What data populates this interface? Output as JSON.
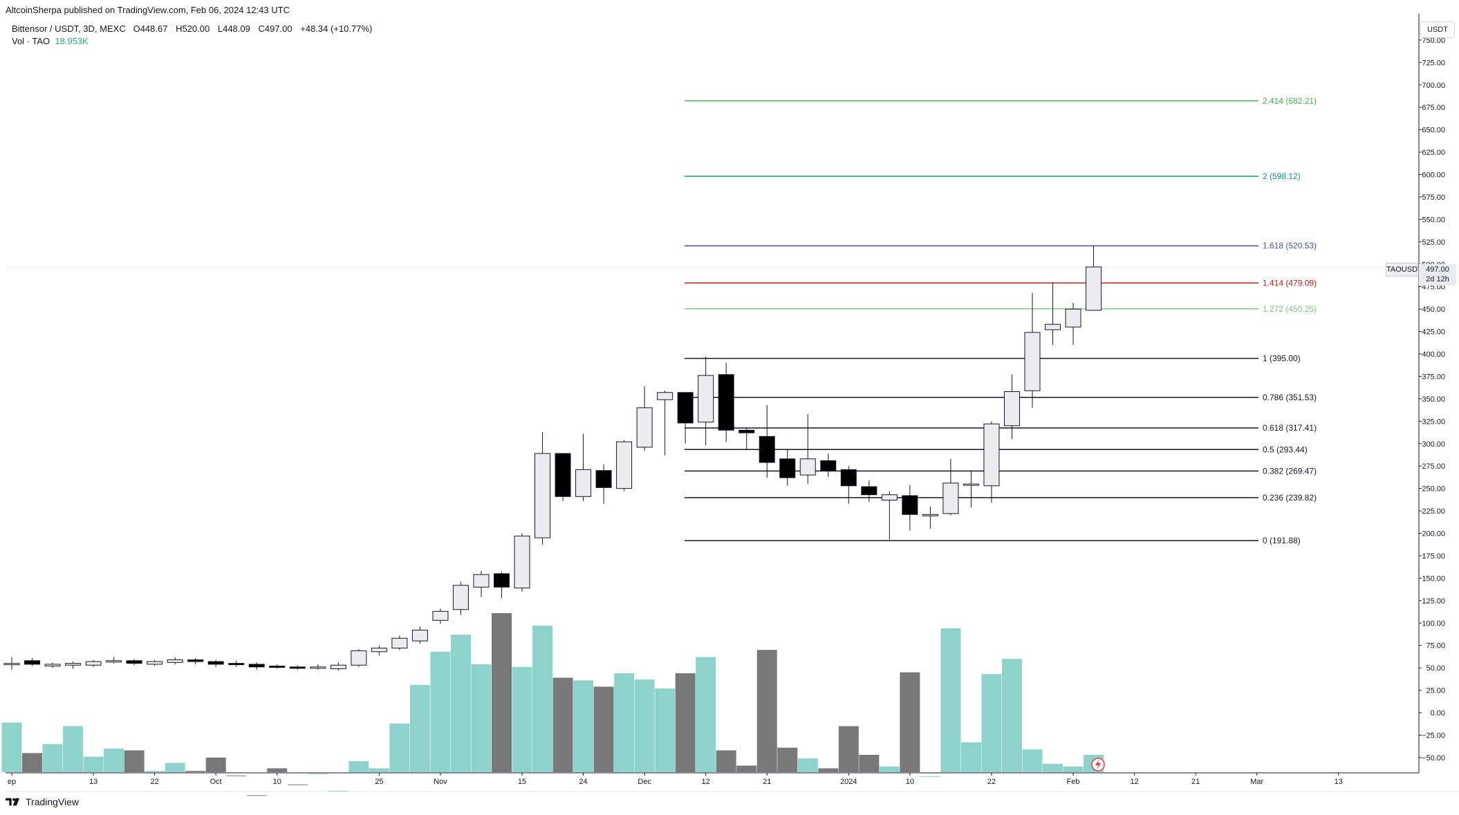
{
  "header": {
    "publisher": "AltcoinSherpa published on TradingView.com, Feb 06, 2024 12:43 UTC",
    "symbol": "Bittensor / USDT, 3D, MEXC",
    "open_label": "O",
    "open": "448.67",
    "high_label": "H",
    "high": "520.00",
    "low_label": "L",
    "low": "448.09",
    "close_label": "C",
    "close": "497.00",
    "change": "+48.34 (+10.77%)",
    "vol_label": "Vol · TAO",
    "vol_value": "18.953K"
  },
  "price_axis": {
    "unit": "USDT",
    "symbol_badge": "TAOUSDT",
    "last_price": "497.00",
    "countdown": "2d 12h"
  },
  "footer": {
    "brand": "TradingView"
  },
  "colors": {
    "up_fill": "#ebebf0",
    "down_fill": "#000000",
    "vol_up": "#8ed3cb",
    "vol_down": "#787878"
  },
  "chart_data": {
    "type": "candlestick",
    "ylim": [
      -60,
      760
    ],
    "yticks": [
      "750.00",
      "725.00",
      "700.00",
      "675.00",
      "650.00",
      "625.00",
      "600.00",
      "575.00",
      "550.00",
      "525.00",
      "500.00",
      "475.00",
      "450.00",
      "425.00",
      "400.00",
      "375.00",
      "350.00",
      "325.00",
      "300.00",
      "275.00",
      "250.00",
      "225.00",
      "200.00",
      "175.00",
      "150.00",
      "125.00",
      "100.00",
      "75.00",
      "50.00",
      "25.00",
      "0.00",
      "−25.00",
      "−50.00"
    ],
    "xticks": [
      {
        "label": "ep",
        "i": 0
      },
      {
        "label": "13",
        "i": 4
      },
      {
        "label": "22",
        "i": 7
      },
      {
        "label": "Oct",
        "i": 10
      },
      {
        "label": "10",
        "i": 13
      },
      {
        "label": "25",
        "i": 18
      },
      {
        "label": "Nov",
        "i": 21
      },
      {
        "label": "15",
        "i": 25
      },
      {
        "label": "24",
        "i": 28
      },
      {
        "label": "Dec",
        "i": 31
      },
      {
        "label": "12",
        "i": 34
      },
      {
        "label": "21",
        "i": 37
      },
      {
        "label": "2024",
        "i": 41
      },
      {
        "label": "10",
        "i": 44
      },
      {
        "label": "22",
        "i": 48
      },
      {
        "label": "Feb",
        "i": 52
      },
      {
        "label": "12",
        "i": 55
      },
      {
        "label": "21",
        "i": 58
      },
      {
        "label": "Mar",
        "i": 61
      },
      {
        "label": "13",
        "i": 65
      }
    ],
    "candles": [
      {
        "o": 55,
        "h": 62,
        "l": 48,
        "c": 55
      },
      {
        "o": 58,
        "h": 61,
        "l": 52,
        "c": 54
      },
      {
        "o": 52,
        "h": 56,
        "l": 50,
        "c": 54
      },
      {
        "o": 53,
        "h": 57,
        "l": 49,
        "c": 55
      },
      {
        "o": 53,
        "h": 59,
        "l": 51,
        "c": 57
      },
      {
        "o": 57,
        "h": 62,
        "l": 55,
        "c": 58
      },
      {
        "o": 58,
        "h": 60,
        "l": 53,
        "c": 55
      },
      {
        "o": 54,
        "h": 59,
        "l": 52,
        "c": 57
      },
      {
        "o": 56,
        "h": 62,
        "l": 54,
        "c": 59
      },
      {
        "o": 59,
        "h": 61,
        "l": 54,
        "c": 57
      },
      {
        "o": 57,
        "h": 59,
        "l": 51,
        "c": 54
      },
      {
        "o": 55,
        "h": 58,
        "l": 51,
        "c": 54
      },
      {
        "o": 54,
        "h": 56,
        "l": 48,
        "c": 51
      },
      {
        "o": 52,
        "h": 54,
        "l": 49,
        "c": 51
      },
      {
        "o": 51,
        "h": 53,
        "l": 48,
        "c": 50
      },
      {
        "o": 50,
        "h": 54,
        "l": 48,
        "c": 51
      },
      {
        "o": 49,
        "h": 56,
        "l": 47,
        "c": 53
      },
      {
        "o": 53,
        "h": 71,
        "l": 51,
        "c": 69
      },
      {
        "o": 68,
        "h": 75,
        "l": 64,
        "c": 72
      },
      {
        "o": 72,
        "h": 86,
        "l": 70,
        "c": 83
      },
      {
        "o": 80,
        "h": 96,
        "l": 77,
        "c": 92
      },
      {
        "o": 103,
        "h": 116,
        "l": 99,
        "c": 113
      },
      {
        "o": 115,
        "h": 146,
        "l": 109,
        "c": 142
      },
      {
        "o": 140,
        "h": 158,
        "l": 129,
        "c": 154
      },
      {
        "o": 155,
        "h": 157,
        "l": 128,
        "c": 140
      },
      {
        "o": 139,
        "h": 200,
        "l": 135,
        "c": 197
      },
      {
        "o": 195,
        "h": 313,
        "l": 187,
        "c": 289
      },
      {
        "o": 289,
        "h": 289,
        "l": 236,
        "c": 241
      },
      {
        "o": 241,
        "h": 311,
        "l": 236,
        "c": 271
      },
      {
        "o": 270,
        "h": 277,
        "l": 233,
        "c": 251
      },
      {
        "o": 250,
        "h": 304,
        "l": 247,
        "c": 302
      },
      {
        "o": 296,
        "h": 364,
        "l": 292,
        "c": 340
      },
      {
        "o": 349,
        "h": 359,
        "l": 287,
        "c": 357
      },
      {
        "o": 357,
        "h": 350,
        "l": 300,
        "c": 323
      },
      {
        "o": 324,
        "h": 397,
        "l": 298,
        "c": 376
      },
      {
        "o": 377,
        "h": 390,
        "l": 302,
        "c": 315
      },
      {
        "o": 315,
        "h": 318,
        "l": 294,
        "c": 312
      },
      {
        "o": 308,
        "h": 343,
        "l": 262,
        "c": 279
      },
      {
        "o": 283,
        "h": 293,
        "l": 253,
        "c": 262
      },
      {
        "o": 265,
        "h": 333,
        "l": 255,
        "c": 283
      },
      {
        "o": 281,
        "h": 289,
        "l": 263,
        "c": 270
      },
      {
        "o": 271,
        "h": 275,
        "l": 233,
        "c": 253
      },
      {
        "o": 252,
        "h": 259,
        "l": 235,
        "c": 243
      },
      {
        "o": 237,
        "h": 247,
        "l": 193,
        "c": 243
      },
      {
        "o": 242,
        "h": 254,
        "l": 203,
        "c": 221
      },
      {
        "o": 221,
        "h": 230,
        "l": 205,
        "c": 221
      },
      {
        "o": 222,
        "h": 283,
        "l": 220,
        "c": 256
      },
      {
        "o": 254,
        "h": 270,
        "l": 229,
        "c": 255
      },
      {
        "o": 253,
        "h": 325,
        "l": 234,
        "c": 322
      },
      {
        "o": 320,
        "h": 377,
        "l": 305,
        "c": 358
      },
      {
        "o": 359,
        "h": 468,
        "l": 340,
        "c": 424
      },
      {
        "o": 427,
        "h": 480,
        "l": 410,
        "c": 433
      },
      {
        "o": 430,
        "h": 457,
        "l": 410,
        "c": 450
      },
      {
        "o": 448.67,
        "h": 520,
        "l": 448.09,
        "c": 497
      }
    ],
    "volume": [
      -11,
      -45,
      -35,
      -15,
      -49,
      -40,
      -42,
      -65,
      -56,
      -65,
      -50,
      -70,
      -92,
      -62,
      -80,
      -68,
      -87,
      -54,
      -62,
      -12,
      31,
      68,
      87,
      54,
      111,
      51,
      97,
      39,
      36,
      29,
      44,
      37,
      27,
      44,
      62,
      -42,
      -59,
      70,
      -39,
      -51,
      -62,
      -15,
      -47,
      -60,
      45,
      -71,
      94,
      -33,
      43,
      60,
      -41,
      -57,
      -60,
      -47
    ]
  },
  "fib_levels": [
    {
      "ratio": "2.414",
      "price": 682.21,
      "label": "2.414 (682.21)",
      "color": "#4caf50"
    },
    {
      "ratio": "2",
      "price": 598.12,
      "label": "2 (598.12)",
      "color": "#089981"
    },
    {
      "ratio": "1.618",
      "price": 520.53,
      "label": "1.618 (520.53)",
      "color": "#3f51b5"
    },
    {
      "ratio": "1.414",
      "price": 479.09,
      "label": "1.414 (479.09)",
      "color": "#b71c1c"
    },
    {
      "ratio": "1.272",
      "price": 450.25,
      "label": "1.272 (450.25)",
      "color": "#81c784"
    },
    {
      "ratio": "1",
      "price": 395.0,
      "label": "1 (395.00)",
      "color": "#131722"
    },
    {
      "ratio": "0.786",
      "price": 351.53,
      "label": "0.786 (351.53)",
      "color": "#131722"
    },
    {
      "ratio": "0.618",
      "price": 317.41,
      "label": "0.618 (317.41)",
      "color": "#131722"
    },
    {
      "ratio": "0.5",
      "price": 293.44,
      "label": "0.5 (293.44)",
      "color": "#131722"
    },
    {
      "ratio": "0.382",
      "price": 269.47,
      "label": "0.382 (269.47)",
      "color": "#131722"
    },
    {
      "ratio": "0.236",
      "price": 239.82,
      "label": "0.236 (239.82)",
      "color": "#131722"
    },
    {
      "ratio": "0",
      "price": 191.88,
      "label": "0 (191.88)",
      "color": "#131722"
    }
  ]
}
